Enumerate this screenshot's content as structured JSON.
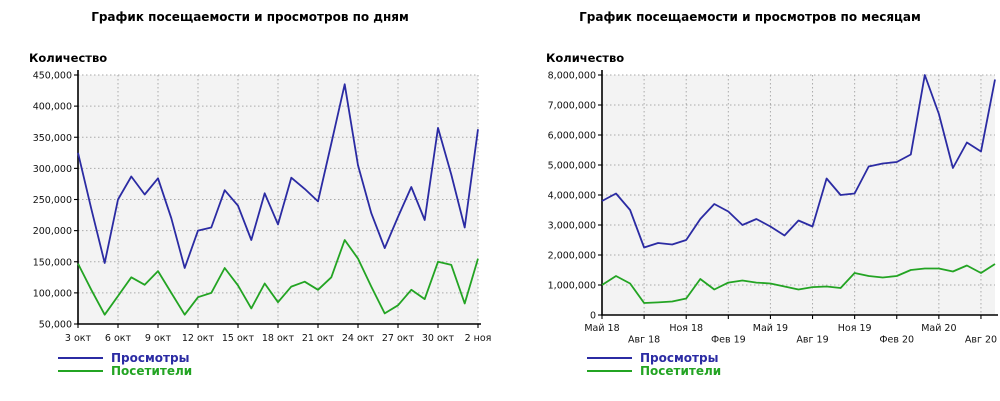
{
  "page": {
    "background": "#ffffff"
  },
  "chart_data": [
    {
      "type": "line",
      "title": "График посещаемости и просмотров по дням",
      "ylabel": "Количество",
      "x_unit": "day",
      "n_points": 31,
      "ylim": [
        50000,
        450000
      ],
      "ytick_step": 50000,
      "grid": "dotted",
      "legend_position": "bottom-left",
      "x_tick_labels": [
        "3 окт",
        "6 окт",
        "9 окт",
        "12 окт",
        "15 окт",
        "18 окт",
        "21 окт",
        "24 окт",
        "27 окт",
        "30 окт",
        "2 ноя"
      ],
      "x_tick_indices": [
        0,
        3,
        6,
        9,
        12,
        15,
        18,
        21,
        24,
        27,
        30
      ],
      "x_label_rows": [
        0,
        0,
        0,
        0,
        0,
        0,
        0,
        0,
        0,
        0,
        0
      ],
      "series": [
        {
          "name": "Просмотры",
          "color": "#2b2ba3",
          "values": [
            325000,
            235000,
            148000,
            250000,
            287000,
            258000,
            284000,
            220000,
            140000,
            200000,
            205000,
            265000,
            240000,
            185000,
            260000,
            210000,
            285000,
            267000,
            247000,
            340000,
            435000,
            305000,
            228000,
            172000,
            222000,
            270000,
            217000,
            365000,
            290000,
            205000,
            363000
          ]
        },
        {
          "name": "Посетители",
          "color": "#23a423",
          "values": [
            147000,
            105000,
            65000,
            95000,
            125000,
            113000,
            135000,
            100000,
            65000,
            93000,
            100000,
            140000,
            112000,
            75000,
            115000,
            85000,
            110000,
            118000,
            105000,
            125000,
            185000,
            155000,
            110000,
            67000,
            80000,
            105000,
            90000,
            150000,
            145000,
            83000,
            155000
          ]
        }
      ]
    },
    {
      "type": "line",
      "title": "График посещаемости и просмотров по месяцам",
      "ylabel": "Количество",
      "x_unit": "month",
      "n_points": 29,
      "ylim": [
        0,
        8000000
      ],
      "ytick_step": 1000000,
      "grid": "dotted",
      "legend_position": "bottom-left",
      "x_tick_labels": [
        "Май 18",
        "Авг 18",
        "Ноя 18",
        "Фев 19",
        "Май 19",
        "Авг 19",
        "Ноя 19",
        "Фев 20",
        "Май 20",
        "Авг 20"
      ],
      "x_tick_indices": [
        0,
        3,
        6,
        9,
        12,
        15,
        18,
        21,
        24,
        27
      ],
      "x_label_rows": [
        0,
        1,
        0,
        1,
        0,
        1,
        0,
        1,
        0,
        1
      ],
      "series": [
        {
          "name": "Просмотры",
          "color": "#2b2ba3",
          "values": [
            3800000,
            4050000,
            3500000,
            2250000,
            2400000,
            2350000,
            2500000,
            3200000,
            3700000,
            3450000,
            3000000,
            3200000,
            2950000,
            2650000,
            3150000,
            2950000,
            4550000,
            4000000,
            4050000,
            4950000,
            5050000,
            5100000,
            5350000,
            8000000,
            6700000,
            4900000,
            5750000,
            5450000,
            7850000
          ]
        },
        {
          "name": "Посетители",
          "color": "#23a423",
          "values": [
            1000000,
            1300000,
            1050000,
            400000,
            420000,
            450000,
            550000,
            1200000,
            850000,
            1080000,
            1150000,
            1080000,
            1050000,
            950000,
            850000,
            930000,
            950000,
            900000,
            1400000,
            1300000,
            1250000,
            1300000,
            1500000,
            1550000,
            1550000,
            1450000,
            1650000,
            1400000,
            1700000
          ]
        }
      ]
    }
  ]
}
